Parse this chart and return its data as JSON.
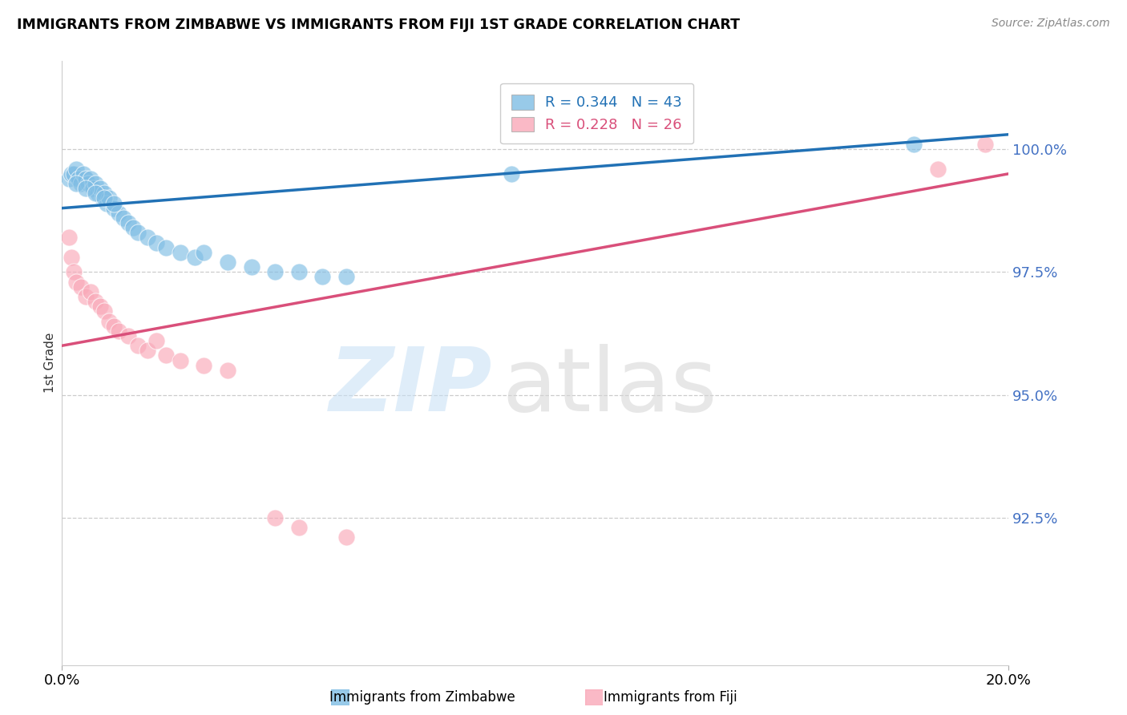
{
  "title": "IMMIGRANTS FROM ZIMBABWE VS IMMIGRANTS FROM FIJI 1ST GRADE CORRELATION CHART",
  "source": "Source: ZipAtlas.com",
  "ylabel": "1st Grade",
  "ytick_labels": [
    "92.5%",
    "95.0%",
    "97.5%",
    "100.0%"
  ],
  "ytick_values": [
    92.5,
    95.0,
    97.5,
    100.0
  ],
  "xlim": [
    0.0,
    20.0
  ],
  "ylim": [
    89.5,
    101.8
  ],
  "legend_blue_label": "R = 0.344   N = 43",
  "legend_pink_label": "R = 0.228   N = 26",
  "blue_color": "#7fbde4",
  "pink_color": "#f9a8b8",
  "blue_line_color": "#2171b5",
  "pink_line_color": "#d94f7a",
  "bottom_legend_blue": "Immigrants from Zimbabwe",
  "bottom_legend_pink": "Immigrants from Fiji",
  "zimbabwe_x": [
    0.15,
    0.2,
    0.25,
    0.3,
    0.35,
    0.4,
    0.45,
    0.5,
    0.55,
    0.6,
    0.65,
    0.7,
    0.75,
    0.8,
    0.85,
    0.9,
    0.95,
    1.0,
    1.1,
    1.2,
    1.3,
    1.4,
    1.5,
    1.6,
    1.8,
    2.0,
    2.2,
    2.5,
    2.8,
    3.0,
    3.5,
    4.0,
    4.5,
    5.0,
    5.5,
    6.0,
    0.3,
    0.5,
    0.7,
    0.9,
    1.1,
    9.5,
    18.0
  ],
  "zimbabwe_y": [
    99.4,
    99.5,
    99.5,
    99.6,
    99.4,
    99.3,
    99.5,
    99.4,
    99.3,
    99.4,
    99.2,
    99.3,
    99.1,
    99.2,
    99.0,
    99.1,
    98.9,
    99.0,
    98.8,
    98.7,
    98.6,
    98.5,
    98.4,
    98.3,
    98.2,
    98.1,
    98.0,
    97.9,
    97.8,
    97.9,
    97.7,
    97.6,
    97.5,
    97.5,
    97.4,
    97.4,
    99.3,
    99.2,
    99.1,
    99.0,
    98.9,
    99.5,
    100.1
  ],
  "fiji_x": [
    0.15,
    0.2,
    0.25,
    0.3,
    0.4,
    0.5,
    0.6,
    0.7,
    0.8,
    0.9,
    1.0,
    1.1,
    1.2,
    1.4,
    1.6,
    1.8,
    2.0,
    2.2,
    2.5,
    3.0,
    3.5,
    4.5,
    5.0,
    6.0,
    18.5,
    19.5
  ],
  "fiji_y": [
    98.2,
    97.8,
    97.5,
    97.3,
    97.2,
    97.0,
    97.1,
    96.9,
    96.8,
    96.7,
    96.5,
    96.4,
    96.3,
    96.2,
    96.0,
    95.9,
    96.1,
    95.8,
    95.7,
    95.6,
    95.5,
    92.5,
    92.3,
    92.1,
    99.6,
    100.1
  ],
  "blue_line_x": [
    0.0,
    20.0
  ],
  "blue_line_y": [
    98.8,
    100.3
  ],
  "pink_line_x": [
    0.0,
    20.0
  ],
  "pink_line_y": [
    96.0,
    99.5
  ]
}
